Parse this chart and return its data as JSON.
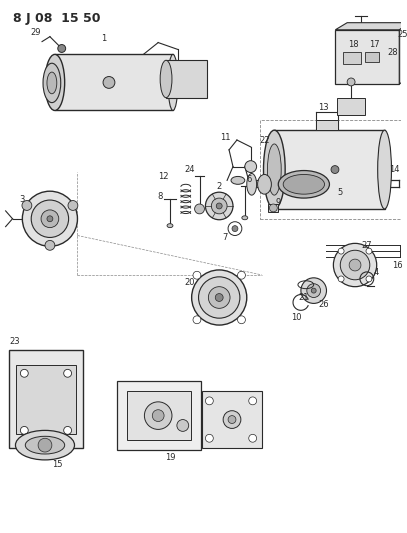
{
  "title": "8 J 08  15 50",
  "bg_color": "#ffffff",
  "line_color": "#2a2a2a",
  "figsize": [
    4.07,
    5.33
  ],
  "dpi": 100
}
